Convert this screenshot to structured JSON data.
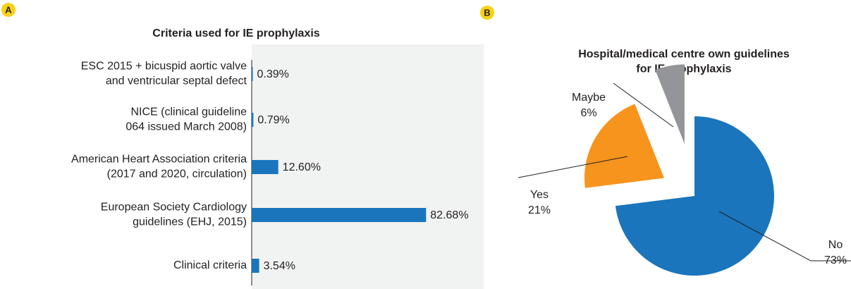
{
  "panel_labels": [
    "A",
    "B"
  ],
  "chart_data": [
    {
      "type": "hbar",
      "title": "Criteria used for IE prophylaxis",
      "categories": [
        "ESC 2015 + bicuspid aortic valve\nand ventricular septal defect",
        "NICE (clinical guideline\n064 issued March 2008)",
        "American Heart Association criteria\n(2017 and 2020, circulation)",
        "European Society Cardiology\nguidelines (EHJ, 2015)",
        "Clinical criteria"
      ],
      "values": [
        0.39,
        0.79,
        12.6,
        82.68,
        3.54
      ],
      "value_labels": [
        "0.39%",
        "0.79%",
        "12.60%",
        "82.68%",
        "3.54%"
      ],
      "color": "#1a75bc",
      "xlim": [
        0,
        110
      ]
    },
    {
      "type": "pie",
      "title": "Hospital/medical centre own guidelines\nfor IE prophylaxis",
      "categories": [
        "No",
        "Yes",
        "Maybe"
      ],
      "values": [
        73,
        21,
        6
      ],
      "value_labels": [
        "73%",
        "21%",
        "6%"
      ],
      "colors": [
        "#1a75bc",
        "#f7941d",
        "#939598"
      ]
    }
  ]
}
